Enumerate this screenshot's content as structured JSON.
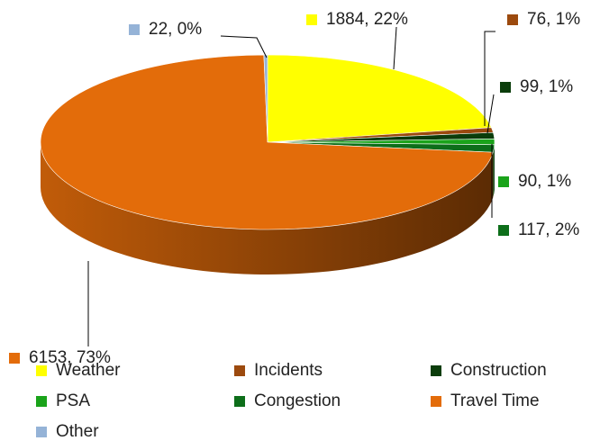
{
  "chart_data": {
    "type": "pie3d",
    "categories": [
      "Weather",
      "Incidents",
      "Construction",
      "PSA",
      "Congestion",
      "Travel Time",
      "Other"
    ],
    "values": [
      1884,
      76,
      99,
      90,
      117,
      6153,
      22
    ],
    "value_labels": [
      "1884, 22%",
      "76, 1%",
      "99, 1%",
      "90, 1%",
      "117, 2%",
      "6153, 73%",
      "22, 0%"
    ],
    "colors": [
      "#ffff00",
      "#9c4a0e",
      "#0b3d0b",
      "#1aa31a",
      "#0d6e1a",
      "#e36c0a",
      "#95b3d7"
    ],
    "legend": "bottom"
  }
}
